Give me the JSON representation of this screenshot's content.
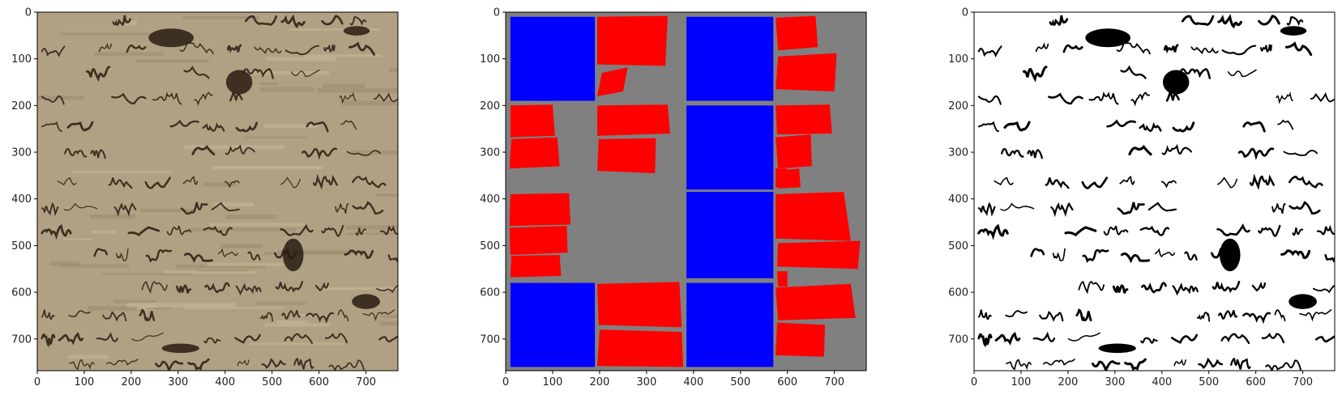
{
  "colors": {
    "parchment": "#b0a184",
    "parchment_light": "#c2b497",
    "ink": "#2a1b12",
    "mask_bg": "#808080",
    "mask_blue": "#0000ff",
    "mask_red": "#ff0000",
    "binary_fg": "#000000",
    "binary_bg": "#ffffff"
  },
  "panels": [
    {
      "name": "manuscript-image",
      "kind": "photo",
      "description_icon": "manuscript-photo-icon",
      "xlim": [
        0,
        768
      ],
      "ylim": [
        768,
        0
      ],
      "xticks": [
        "0",
        "100",
        "200",
        "300",
        "400",
        "500",
        "600",
        "700"
      ],
      "yticks": [
        "0",
        "100",
        "200",
        "300",
        "400",
        "500",
        "600",
        "700"
      ]
    },
    {
      "name": "segmentation-mask",
      "kind": "mask",
      "xlim": [
        0,
        768
      ],
      "ylim": [
        768,
        0
      ],
      "xticks": [
        "0",
        "100",
        "200",
        "300",
        "400",
        "500",
        "600",
        "700"
      ],
      "yticks": [
        "0",
        "100",
        "200",
        "300",
        "400",
        "500",
        "600",
        "700"
      ],
      "blue_blocks": [
        [
          10,
          10,
          190,
          190
        ],
        [
          385,
          10,
          570,
          190
        ],
        [
          385,
          200,
          570,
          380
        ],
        [
          385,
          385,
          570,
          570
        ],
        [
          10,
          580,
          190,
          760
        ],
        [
          385,
          580,
          570,
          760
        ]
      ],
      "red_polys": [
        [
          [
            195,
            10
          ],
          [
            345,
            8
          ],
          [
            340,
            115
          ],
          [
            195,
            112
          ]
        ],
        [
          [
            205,
            130
          ],
          [
            260,
            118
          ],
          [
            250,
            170
          ],
          [
            195,
            180
          ]
        ],
        [
          [
            575,
            12
          ],
          [
            660,
            8
          ],
          [
            665,
            75
          ],
          [
            580,
            82
          ]
        ],
        [
          [
            580,
            95
          ],
          [
            705,
            88
          ],
          [
            700,
            170
          ],
          [
            575,
            165
          ]
        ],
        [
          [
            10,
            200
          ],
          [
            100,
            198
          ],
          [
            105,
            265
          ],
          [
            10,
            268
          ]
        ],
        [
          [
            12,
            272
          ],
          [
            110,
            268
          ],
          [
            115,
            330
          ],
          [
            8,
            335
          ]
        ],
        [
          [
            195,
            200
          ],
          [
            345,
            198
          ],
          [
            350,
            260
          ],
          [
            195,
            265
          ]
        ],
        [
          [
            198,
            272
          ],
          [
            320,
            270
          ],
          [
            318,
            345
          ],
          [
            195,
            340
          ]
        ],
        [
          [
            575,
            200
          ],
          [
            690,
            198
          ],
          [
            695,
            260
          ],
          [
            578,
            262
          ]
        ],
        [
          [
            575,
            268
          ],
          [
            650,
            262
          ],
          [
            652,
            330
          ],
          [
            580,
            335
          ]
        ],
        [
          [
            575,
            335
          ],
          [
            600,
            335
          ],
          [
            600,
            375
          ],
          [
            575,
            375
          ]
        ],
        [
          [
            575,
            340
          ],
          [
            625,
            335
          ],
          [
            628,
            375
          ],
          [
            580,
            378
          ]
        ],
        [
          [
            10,
            390
          ],
          [
            135,
            388
          ],
          [
            138,
            455
          ],
          [
            8,
            458
          ]
        ],
        [
          [
            8,
            462
          ],
          [
            130,
            458
          ],
          [
            132,
            515
          ],
          [
            10,
            520
          ]
        ],
        [
          [
            12,
            522
          ],
          [
            115,
            520
          ],
          [
            118,
            565
          ],
          [
            10,
            568
          ]
        ],
        [
          [
            575,
            390
          ],
          [
            720,
            385
          ],
          [
            735,
            490
          ],
          [
            575,
            485
          ]
        ],
        [
          [
            580,
            495
          ],
          [
            755,
            490
          ],
          [
            750,
            550
          ],
          [
            578,
            545
          ]
        ],
        [
          [
            578,
            555
          ],
          [
            600,
            555
          ],
          [
            600,
            588
          ],
          [
            580,
            588
          ]
        ],
        [
          [
            195,
            582
          ],
          [
            370,
            578
          ],
          [
            375,
            675
          ],
          [
            198,
            670
          ]
        ],
        [
          [
            200,
            680
          ],
          [
            375,
            685
          ],
          [
            378,
            760
          ],
          [
            195,
            758
          ]
        ],
        [
          [
            575,
            590
          ],
          [
            735,
            582
          ],
          [
            745,
            655
          ],
          [
            580,
            660
          ]
        ],
        [
          [
            578,
            665
          ],
          [
            680,
            670
          ],
          [
            678,
            738
          ],
          [
            575,
            735
          ]
        ]
      ]
    },
    {
      "name": "binarized-image",
      "kind": "binary",
      "xlim": [
        0,
        768
      ],
      "ylim": [
        768,
        0
      ],
      "xticks": [
        "0",
        "100",
        "200",
        "300",
        "400",
        "500",
        "600",
        "700"
      ],
      "yticks": [
        "0",
        "100",
        "200",
        "300",
        "400",
        "500",
        "600",
        "700"
      ]
    }
  ]
}
